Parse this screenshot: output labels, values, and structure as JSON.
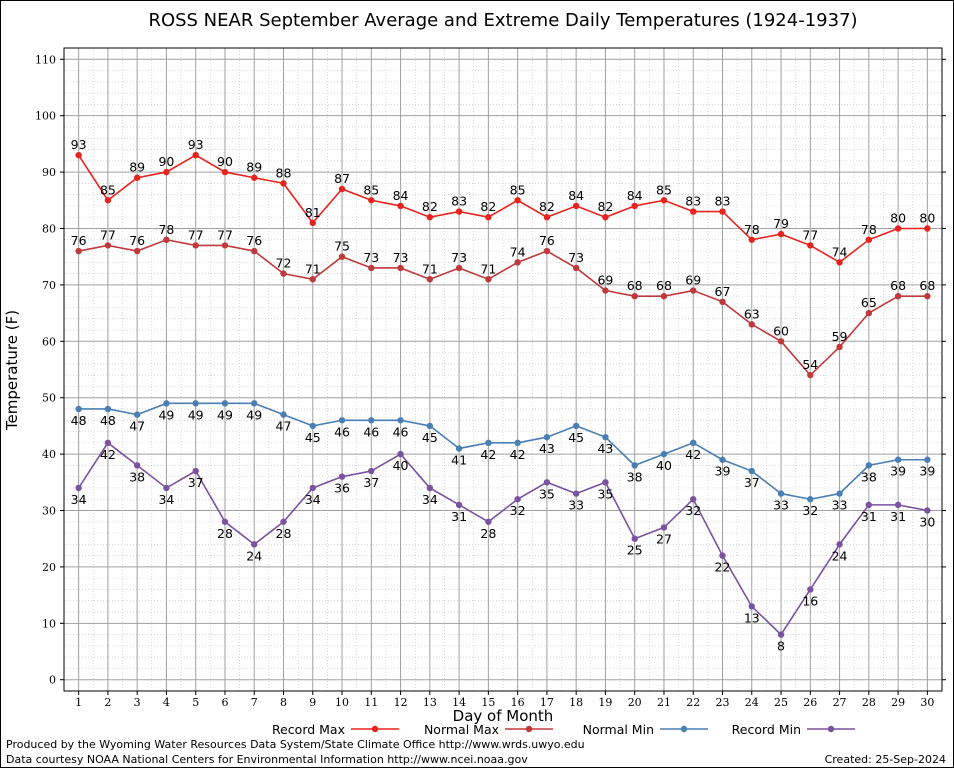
{
  "chart_data": {
    "type": "line",
    "title": "ROSS NEAR September Average and Extreme Daily Temperatures (1924-1937)",
    "xlabel": "Day of Month",
    "ylabel": "Temperature (F)",
    "xlim": [
      0.5,
      30.5
    ],
    "ylim": [
      -2,
      112
    ],
    "x": [
      1,
      2,
      3,
      4,
      5,
      6,
      7,
      8,
      9,
      10,
      11,
      12,
      13,
      14,
      15,
      16,
      17,
      18,
      19,
      20,
      21,
      22,
      23,
      24,
      25,
      26,
      27,
      28,
      29,
      30
    ],
    "yticks": [
      0,
      10,
      20,
      30,
      40,
      50,
      60,
      70,
      80,
      90,
      100,
      110
    ],
    "grid": true,
    "legend_position": "bottom",
    "series": [
      {
        "name": "Record Max",
        "color": "#e8221c",
        "values": [
          93,
          85,
          89,
          90,
          93,
          90,
          89,
          88,
          81,
          87,
          85,
          84,
          82,
          83,
          82,
          85,
          82,
          84,
          82,
          84,
          85,
          83,
          83,
          78,
          79,
          77,
          74,
          78,
          80,
          80
        ],
        "label_pos": "above"
      },
      {
        "name": "Normal Max",
        "color": "#c0393b",
        "values": [
          76,
          77,
          76,
          78,
          77,
          77,
          76,
          72,
          71,
          75,
          73,
          73,
          71,
          73,
          71,
          74,
          76,
          73,
          69,
          68,
          68,
          69,
          67,
          63,
          60,
          54,
          59,
          65,
          68,
          68
        ],
        "label_pos": "above"
      },
      {
        "name": "Normal Min",
        "color": "#4a7fb5",
        "values": [
          48,
          48,
          47,
          49,
          49,
          49,
          49,
          47,
          45,
          46,
          46,
          46,
          45,
          41,
          42,
          42,
          43,
          45,
          43,
          38,
          40,
          42,
          39,
          37,
          33,
          32,
          33,
          38,
          39,
          39
        ],
        "label_pos": "below"
      },
      {
        "name": "Record Min",
        "color": "#7b52a0",
        "values": [
          34,
          42,
          38,
          34,
          37,
          28,
          24,
          28,
          34,
          36,
          37,
          40,
          34,
          31,
          28,
          32,
          35,
          33,
          35,
          25,
          27,
          32,
          22,
          13,
          8,
          16,
          24,
          31,
          31,
          30
        ],
        "label_pos": "below"
      }
    ]
  },
  "footer": {
    "line1": "Produced by the Wyoming Water Resources Data System/State Climate Office http://www.wrds.uwyo.edu",
    "line2": "Data courtesy NOAA National Centers for Environmental Information http://www.ncei.noaa.gov",
    "created": "Created:  25-Sep-2024"
  }
}
